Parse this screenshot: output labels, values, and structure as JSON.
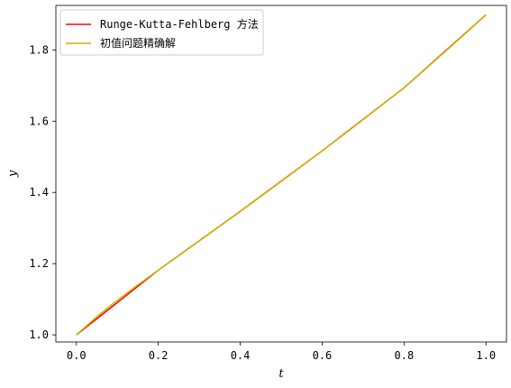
{
  "chart_data": {
    "type": "line",
    "xlabel": "t",
    "ylabel": "y",
    "xlim": [
      -0.05,
      1.05
    ],
    "ylim": [
      0.98,
      1.925
    ],
    "xticks": [
      0.0,
      0.2,
      0.4,
      0.6,
      0.8,
      1.0
    ],
    "xtick_labels": [
      "0.0",
      "0.2",
      "0.4",
      "0.6",
      "0.8",
      "1.0"
    ],
    "yticks": [
      1.0,
      1.2,
      1.4,
      1.6,
      1.8
    ],
    "ytick_labels": [
      "1.0",
      "1.2",
      "1.4",
      "1.6",
      "1.8"
    ],
    "grid": false,
    "legend_position": "top-left",
    "series": [
      {
        "name": "Runge-Kutta-Fehlberg 方法",
        "color": "#ff0000",
        "x": [
          0.0,
          0.2,
          0.4,
          0.6,
          0.8,
          1.0
        ],
        "y": [
          1.0,
          1.1816,
          1.3468,
          1.5166,
          1.6936,
          1.8988
        ]
      },
      {
        "name": "初值问题精确解",
        "color": "#c8b400",
        "x": [
          0.0,
          0.05,
          0.1,
          0.15,
          0.2,
          0.25,
          0.3,
          0.35,
          0.4,
          0.45,
          0.5,
          0.55,
          0.6,
          0.65,
          0.7,
          0.75,
          0.8,
          0.85,
          0.9,
          0.95,
          1.0
        ],
        "y": [
          1.0,
          1.0509,
          1.0968,
          1.1403,
          1.1816,
          1.2226,
          1.2638,
          1.3053,
          1.3468,
          1.3886,
          1.4309,
          1.4737,
          1.5166,
          1.56,
          1.6045,
          1.6495,
          1.6936,
          1.7443,
          1.7951,
          1.8467,
          1.8988
        ]
      }
    ]
  }
}
